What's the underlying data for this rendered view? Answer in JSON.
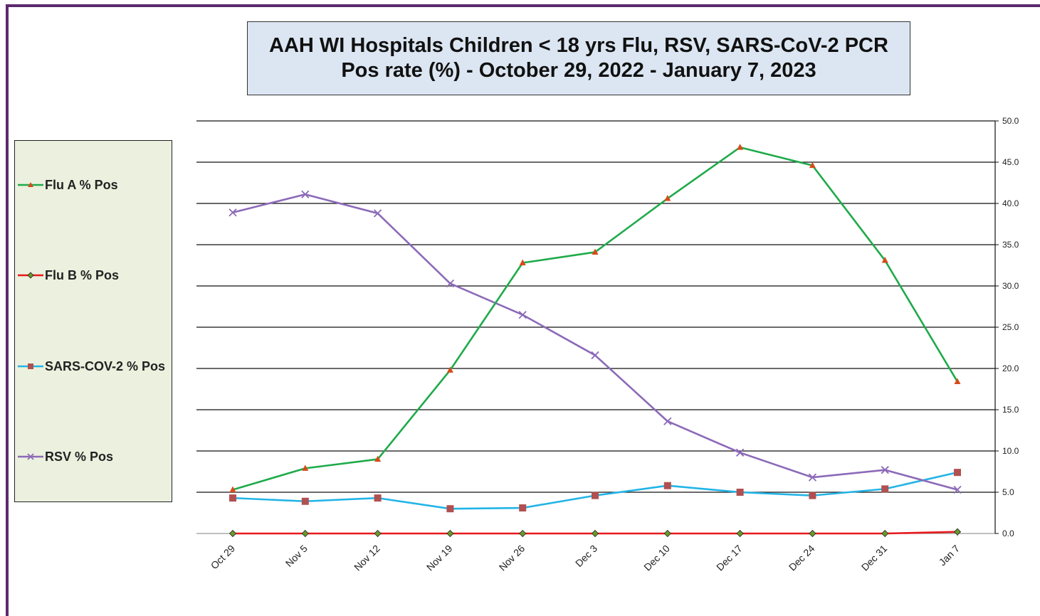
{
  "chart_data": {
    "type": "line",
    "title_line1": "AAH WI Hospitals Children < 18 yrs Flu, RSV, SARS-CoV-2 PCR",
    "title_line2": "Pos rate (%) - October 29, 2022 - January 7, 2023",
    "categories": [
      "Oct 29",
      "Nov 5",
      "Nov 12",
      "Nov 19",
      "Nov 26",
      "Dec 3",
      "Dec 10",
      "Dec 17",
      "Dec 24",
      "Dec 31",
      "Jan 7"
    ],
    "ylim": [
      0,
      50
    ],
    "yticks": [
      "0.0",
      "5.0",
      "10.0",
      "15.0",
      "20.0",
      "25.0",
      "30.0",
      "35.0",
      "40.0",
      "45.0",
      "50.0"
    ],
    "y_axis_side": "right",
    "grid": true,
    "legend_position": "left",
    "series": [
      {
        "name": "Flu A % Pos",
        "color": "#1faa4a",
        "marker": "triangle",
        "marker_color": "#d64b1a",
        "values": [
          5.3,
          7.9,
          9.0,
          19.8,
          32.8,
          34.1,
          40.6,
          46.8,
          44.6,
          33.1,
          18.4
        ]
      },
      {
        "name": "Flu B % Pos",
        "color": "#e8181c",
        "marker": "diamond",
        "marker_color": "#6a9a2a",
        "values": [
          0.0,
          0.0,
          0.0,
          0.0,
          0.0,
          0.0,
          0.0,
          0.0,
          0.0,
          0.0,
          0.2
        ]
      },
      {
        "name": "SARS-COV-2 % Pos",
        "color": "#22b4e6",
        "marker": "square",
        "marker_color": "#b05050",
        "values": [
          4.3,
          3.9,
          4.3,
          3.0,
          3.1,
          4.6,
          5.8,
          5.0,
          4.6,
          5.4,
          7.4
        ]
      },
      {
        "name": "RSV % Pos",
        "color": "#8c6ab8",
        "marker": "x",
        "marker_color": "#8c6ab8",
        "values": [
          38.9,
          41.1,
          38.8,
          30.3,
          26.5,
          21.6,
          13.6,
          9.8,
          6.8,
          7.7,
          5.3
        ]
      }
    ]
  }
}
